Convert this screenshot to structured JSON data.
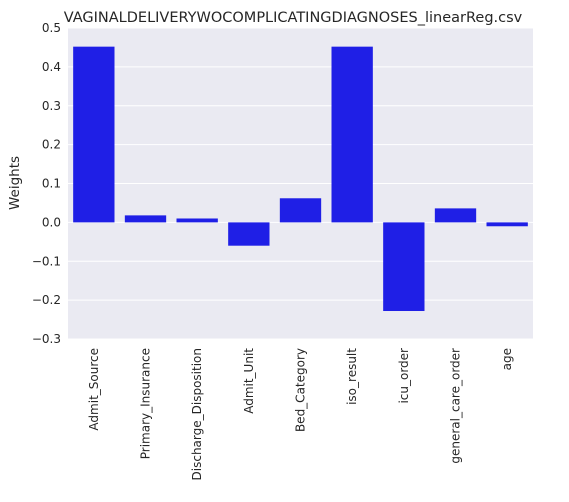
{
  "chart_data": {
    "type": "bar",
    "title": "VAGINALDELIVERYWOCOMPLICATINGDIAGNOSES_linearReg.csv",
    "xlabel": "",
    "ylabel": "Weights",
    "categories": [
      "Admit_Source",
      "Primary_Insurance",
      "Discharge_Disposition",
      "Admit_Unit",
      "Bed_Category",
      "iso_result",
      "icu_order",
      "general_care_order",
      "age"
    ],
    "values": [
      0.452,
      0.018,
      0.01,
      -0.06,
      0.062,
      0.452,
      -0.228,
      0.036,
      -0.01
    ],
    "ylim": [
      -0.3,
      0.5
    ],
    "yticks": [
      "0.5",
      "0.4",
      "0.3",
      "0.2",
      "0.1",
      "0.0",
      "−0.1",
      "−0.2",
      "−0.3"
    ],
    "grid": true,
    "bar_color": "#1f1fe6",
    "background_color": "#eaeaf2"
  }
}
